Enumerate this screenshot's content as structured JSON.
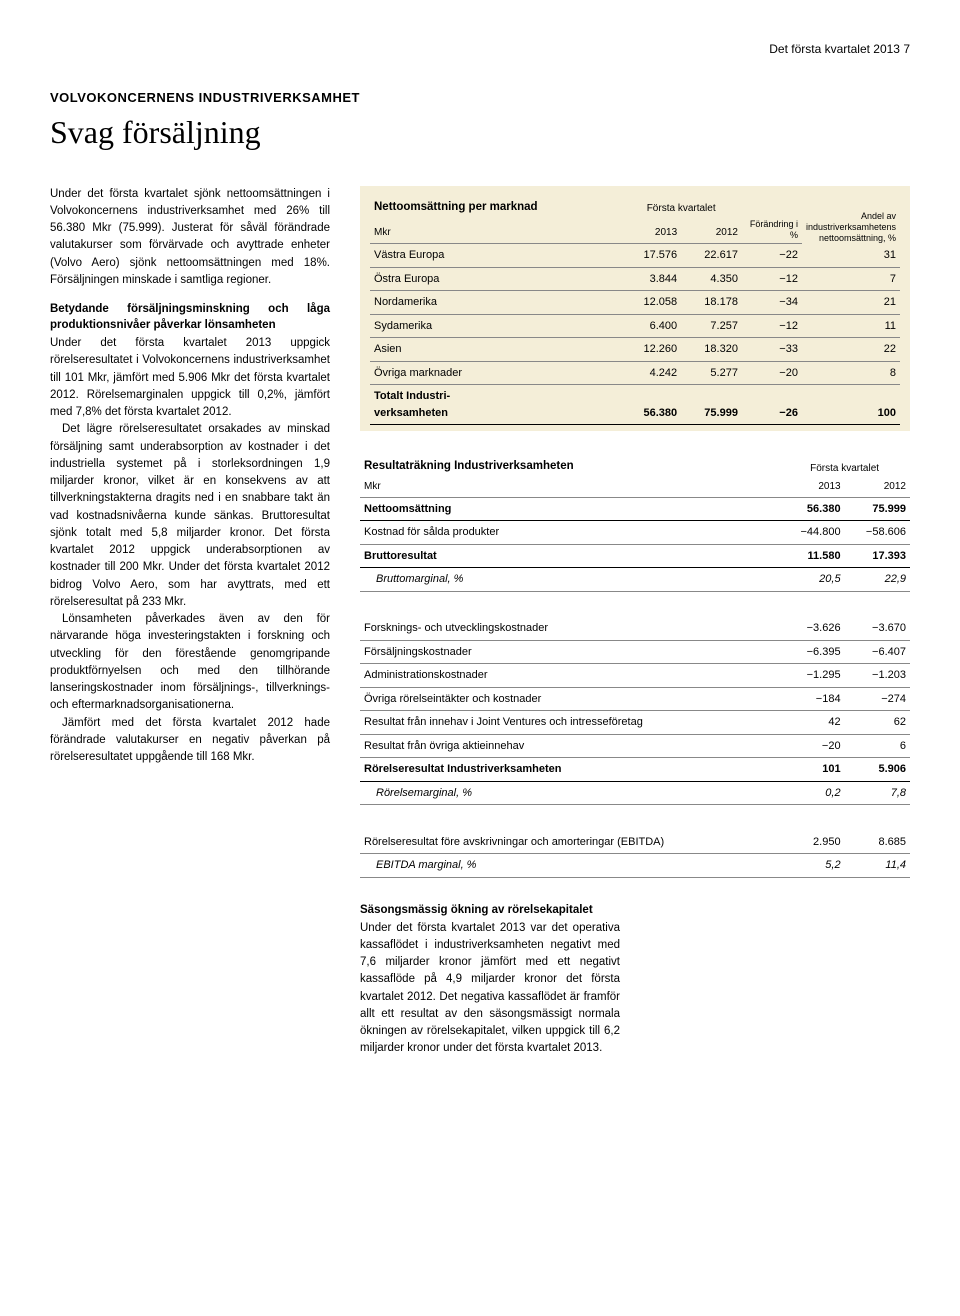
{
  "header": {
    "text": "Det första kvartalet 2013   7"
  },
  "eyebrow": "VOLVOKONCERNENS INDUSTRIVERKSAMHET",
  "title": "Svag försäljning",
  "left": {
    "p1": "Under det första kvartalet sjönk nettoomsättningen i Volvokoncernens industriverksamhet med 26% till 56.380 Mkr (75.999). Justerat för såväl förändrade valutakurser som förvärvade och avyttrade enheter (Volvo Aero) sjönk nettoomsättningen med 18%. Försäljningen minskade i samtliga regioner.",
    "sub1": "Betydande försäljningsminskning och låga produktionsnivåer påverkar lönsamheten",
    "p2": "Under det första kvartalet 2013 uppgick rörelseresultatet i Volvokoncernens industriverksamhet till 101 Mkr, jämfört med 5.906 Mkr det första kvartalet 2012. Rörelsemarginalen uppgick till 0,2%, jämfört med 7,8% det första kvartalet 2012.",
    "p3": "Det lägre rörelseresultatet orsakades av minskad försäljning samt underabsorption av kostnader i det industriella systemet på i storleksordningen 1,9 miljarder kronor, vilket är en konsekvens av att tillverkningstakterna dragits ned i en snabbare takt än vad kostnadsnivåerna kunde sänkas. Bruttoresultat sjönk totalt med 5,8 miljarder kronor. Det första kvartalet 2012 uppgick underabsorptionen av kostnader till 200 Mkr. Under det första kvartalet 2012 bidrog Volvo Aero, som har avyttrats, med ett rörelseresultat på 233 Mkr.",
    "p4": "Lönsamheten påverkades även av den för närvarande höga investeringstakten i forskning och utveckling för den förestående genomgripande produktförnyelsen och med den tillhörande lanseringskostnader inom försäljnings-, tillverknings- och eftermarknadsorganisationerna.",
    "p5": "Jämfört med det första kvartalet 2012 hade förändrade valutakurser en negativ påverkan på rörelseresultatet uppgående till 168 Mkr."
  },
  "table1": {
    "title": "Nettoomsättning per marknad",
    "super_header": "Första kvartalet",
    "cols": [
      "Mkr",
      "2013",
      "2012",
      "Förändring i %",
      "Andel av industriverksamhetens nettoomsättning, %"
    ],
    "rows": [
      [
        "Västra Europa",
        "17.576",
        "22.617",
        "−22",
        "31"
      ],
      [
        "Östra Europa",
        "3.844",
        "4.350",
        "−12",
        "7"
      ],
      [
        "Nordamerika",
        "12.058",
        "18.178",
        "−34",
        "21"
      ],
      [
        "Sydamerika",
        "6.400",
        "7.257",
        "−12",
        "11"
      ],
      [
        "Asien",
        "12.260",
        "18.320",
        "−33",
        "22"
      ],
      [
        "Övriga marknader",
        "4.242",
        "5.277",
        "−20",
        "8"
      ]
    ],
    "total": [
      "Totalt Industri-\nverksamheten",
      "56.380",
      "75.999",
      "−26",
      "100"
    ]
  },
  "table2": {
    "title": "Resultaträkning Industriverksamheten",
    "super_header": "Första kvartalet",
    "cols": [
      "Mkr",
      "2013",
      "2012"
    ],
    "rows": [
      {
        "label": "Nettoomsättning",
        "v1": "56.380",
        "v2": "75.999",
        "bold": true
      },
      {
        "label": "Kostnad för sålda produkter",
        "v1": "−44.800",
        "v2": "−58.606"
      },
      {
        "label": "Bruttoresultat",
        "v1": "11.580",
        "v2": "17.393",
        "bold": true
      },
      {
        "label": "Bruttomarginal, %",
        "v1": "20,5",
        "v2": "22,9",
        "italic": true,
        "indent": true
      },
      {
        "spacer": true
      },
      {
        "label": "Forsknings- och utvecklingskostnader",
        "v1": "−3.626",
        "v2": "−3.670"
      },
      {
        "label": "Försäljningskostnader",
        "v1": "−6.395",
        "v2": "−6.407"
      },
      {
        "label": "Administrationskostnader",
        "v1": "−1.295",
        "v2": "−1.203"
      },
      {
        "label": "Övriga rörelseintäkter och kostnader",
        "v1": "−184",
        "v2": "−274"
      },
      {
        "label": "Resultat från innehav i Joint Ventures och intresseföretag",
        "v1": "42",
        "v2": "62"
      },
      {
        "label": "Resultat från övriga aktieinnehav",
        "v1": "−20",
        "v2": "6"
      },
      {
        "label": "Rörelseresultat Industriverksamheten",
        "v1": "101",
        "v2": "5.906",
        "bold": true
      },
      {
        "label": "Rörelsemarginal, %",
        "v1": "0,2",
        "v2": "7,8",
        "italic": true,
        "indent": true
      },
      {
        "spacer": true
      },
      {
        "label": "Rörelseresultat före avskrivningar och amorteringar (EBITDA)",
        "v1": "2.950",
        "v2": "8.685"
      },
      {
        "label": "EBITDA marginal, %",
        "v1": "5,2",
        "v2": "11,4",
        "italic": true,
        "indent": true
      }
    ]
  },
  "bottom": {
    "sub": "Säsongsmässig ökning av rörelsekapitalet",
    "p1": "Under det första kvartalet 2013 var det operativa kassaflödet i industriverksamheten negativt med 7,6 miljarder kronor jämfört med ett negativt kassaflöde på 4,9 miljarder kronor det första kvartalet 2012. Det negativa kassaflödet är framför allt ett resultat av den säsongsmässigt normala ökningen av rörelsekapitalet, vilken uppgick till 6,2 miljarder kronor under det första kvartalet 2013."
  }
}
